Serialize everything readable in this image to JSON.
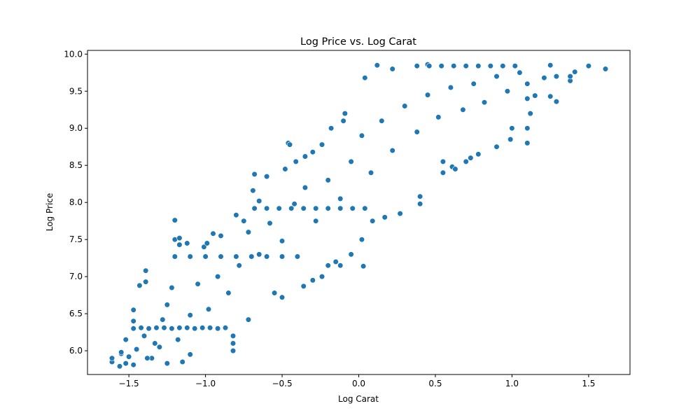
{
  "chart_data": {
    "type": "scatter",
    "title": "Log Price vs. Log Carat",
    "xlabel": "Log Carat",
    "ylabel": "Log Price",
    "xlim": [
      -1.77,
      1.77
    ],
    "ylim": [
      5.68,
      10.05
    ],
    "xticks": [
      -1.5,
      -1.0,
      -0.5,
      0.0,
      0.5,
      1.0,
      1.5
    ],
    "xtick_labels": [
      "−1.5",
      "−1.0",
      "−0.5",
      "0.0",
      "0.5",
      "1.0",
      "1.5"
    ],
    "yticks": [
      6.0,
      6.5,
      7.0,
      7.5,
      8.0,
      8.5,
      9.0,
      9.5,
      10.0
    ],
    "ytick_labels": [
      "6.0",
      "6.5",
      "7.0",
      "7.5",
      "8.0",
      "8.5",
      "9.0",
      "9.5",
      "10.0"
    ],
    "grid": false,
    "legend": "none",
    "colors": {
      "marker_fill": "#1f77b4",
      "marker_edge": "#ffffff"
    },
    "series": [
      {
        "points": [
          [
            -1.61,
            5.85
          ],
          [
            -1.61,
            5.9
          ],
          [
            -1.56,
            5.79
          ],
          [
            -1.55,
            5.96
          ],
          [
            -1.52,
            5.83
          ],
          [
            -1.52,
            6.15
          ],
          [
            -1.47,
            5.81
          ],
          [
            -1.47,
            6.4
          ],
          [
            -1.47,
            6.55
          ],
          [
            -1.43,
            6.88
          ],
          [
            -1.39,
            7.08
          ],
          [
            -1.39,
            6.93
          ],
          [
            -1.35,
            5.9
          ],
          [
            -1.3,
            6.05
          ],
          [
            -1.25,
            5.83
          ],
          [
            -1.22,
            6.85
          ],
          [
            -1.2,
            7.5
          ],
          [
            -1.2,
            7.76
          ],
          [
            -1.17,
            7.52
          ],
          [
            -1.17,
            7.43
          ],
          [
            -1.15,
            5.85
          ],
          [
            -1.12,
            7.45
          ],
          [
            -1.1,
            5.95
          ],
          [
            -1.01,
            7.4
          ],
          [
            -0.99,
            7.45
          ],
          [
            -0.95,
            7.58
          ],
          [
            -0.9,
            7.55
          ],
          [
            -0.82,
            6.1
          ],
          [
            -0.82,
            6.2
          ],
          [
            -0.82,
            6.0
          ],
          [
            -0.8,
            7.83
          ],
          [
            -0.75,
            7.75
          ],
          [
            -0.72,
            6.42
          ],
          [
            -0.69,
            8.16
          ],
          [
            -0.68,
            8.38
          ],
          [
            -0.65,
            8.02
          ],
          [
            -0.6,
            8.35
          ],
          [
            -0.55,
            6.78
          ],
          [
            -0.5,
            6.72
          ],
          [
            -0.48,
            8.45
          ],
          [
            -0.46,
            8.8
          ],
          [
            -0.45,
            8.78
          ],
          [
            -0.41,
            8.55
          ],
          [
            -0.36,
            6.87
          ],
          [
            -0.35,
            8.62
          ],
          [
            -0.3,
            8.68
          ],
          [
            -0.3,
            6.95
          ],
          [
            -0.24,
            7.0
          ],
          [
            -0.24,
            8.78
          ],
          [
            -0.2,
            7.15
          ],
          [
            -0.18,
            9.0
          ],
          [
            -0.15,
            7.2
          ],
          [
            -0.12,
            7.15
          ],
          [
            -0.1,
            9.1
          ],
          [
            -0.09,
            9.2
          ],
          [
            -0.05,
            7.3
          ],
          [
            0.02,
            7.5
          ],
          [
            0.03,
            7.14
          ],
          [
            0.04,
            9.68
          ],
          [
            0.09,
            7.75
          ],
          [
            0.12,
            9.85
          ],
          [
            0.17,
            7.8
          ],
          [
            0.22,
            9.8
          ],
          [
            0.27,
            7.85
          ],
          [
            0.4,
            7.98
          ],
          [
            0.4,
            8.08
          ],
          [
            0.45,
            9.86
          ],
          [
            0.55,
            8.4
          ],
          [
            0.55,
            8.55
          ],
          [
            0.61,
            8.48
          ],
          [
            0.63,
            8.45
          ],
          [
            0.7,
            8.55
          ],
          [
            0.73,
            8.6
          ],
          [
            0.78,
            8.65
          ],
          [
            0.9,
            8.75
          ],
          [
            0.99,
            8.85
          ],
          [
            1.0,
            9.0
          ],
          [
            1.1,
            8.8
          ],
          [
            1.1,
            9.0
          ],
          [
            1.1,
            9.4
          ],
          [
            1.1,
            9.6
          ],
          [
            1.12,
            9.2
          ],
          [
            1.15,
            9.44
          ],
          [
            1.21,
            9.68
          ],
          [
            1.25,
            9.85
          ],
          [
            1.25,
            9.43
          ],
          [
            1.29,
            9.36
          ],
          [
            1.29,
            9.7
          ],
          [
            1.38,
            9.64
          ],
          [
            1.38,
            9.7
          ],
          [
            1.41,
            9.76
          ],
          [
            1.5,
            9.84
          ],
          [
            1.61,
            9.8
          ],
          [
            -1.47,
            6.3
          ],
          [
            -1.42,
            6.31
          ],
          [
            -1.37,
            6.3
          ],
          [
            -1.32,
            6.31
          ],
          [
            -1.27,
            6.31
          ],
          [
            -1.22,
            6.3
          ],
          [
            -1.17,
            6.31
          ],
          [
            -1.12,
            6.31
          ],
          [
            -1.07,
            6.3
          ],
          [
            -1.02,
            6.31
          ],
          [
            -0.97,
            6.31
          ],
          [
            -0.92,
            6.3
          ],
          [
            -0.87,
            6.31
          ],
          [
            -1.2,
            7.27
          ],
          [
            -1.1,
            7.27
          ],
          [
            -1.0,
            7.27
          ],
          [
            -0.9,
            7.27
          ],
          [
            -0.8,
            7.27
          ],
          [
            -0.7,
            7.27
          ],
          [
            -0.6,
            7.27
          ],
          [
            -0.5,
            7.27
          ],
          [
            -0.4,
            7.27
          ],
          [
            -0.68,
            7.92
          ],
          [
            -0.6,
            7.92
          ],
          [
            -0.52,
            7.92
          ],
          [
            -0.44,
            7.92
          ],
          [
            -0.36,
            7.92
          ],
          [
            -0.28,
            7.92
          ],
          [
            -0.2,
            7.92
          ],
          [
            -0.12,
            7.92
          ],
          [
            -0.04,
            7.92
          ],
          [
            0.04,
            7.92
          ],
          [
            0.38,
            9.84
          ],
          [
            0.46,
            9.84
          ],
          [
            0.54,
            9.84
          ],
          [
            0.62,
            9.84
          ],
          [
            0.7,
            9.84
          ],
          [
            0.78,
            9.84
          ],
          [
            0.86,
            9.84
          ],
          [
            0.94,
            9.84
          ],
          [
            1.02,
            9.84
          ],
          [
            -1.55,
            5.98
          ],
          [
            -1.5,
            5.92
          ],
          [
            -1.45,
            6.02
          ],
          [
            -1.4,
            6.2
          ],
          [
            -1.38,
            5.9
          ],
          [
            -1.33,
            6.1
          ],
          [
            -1.28,
            6.42
          ],
          [
            -1.25,
            6.62
          ],
          [
            -1.18,
            6.15
          ],
          [
            -1.1,
            6.48
          ],
          [
            -1.05,
            6.9
          ],
          [
            -0.98,
            6.56
          ],
          [
            -0.92,
            7.0
          ],
          [
            -0.85,
            6.78
          ],
          [
            -0.78,
            7.15
          ],
          [
            -0.72,
            7.6
          ],
          [
            -0.65,
            7.3
          ],
          [
            -0.58,
            7.72
          ],
          [
            -0.5,
            7.48
          ],
          [
            -0.42,
            7.98
          ],
          [
            -0.35,
            8.2
          ],
          [
            -0.28,
            7.75
          ],
          [
            -0.2,
            8.3
          ],
          [
            -0.12,
            8.05
          ],
          [
            -0.05,
            8.55
          ],
          [
            0.02,
            8.9
          ],
          [
            0.08,
            8.4
          ],
          [
            0.15,
            9.1
          ],
          [
            0.22,
            8.7
          ],
          [
            0.3,
            9.3
          ],
          [
            0.38,
            8.95
          ],
          [
            0.45,
            9.45
          ],
          [
            0.52,
            9.15
          ],
          [
            0.6,
            9.55
          ],
          [
            0.68,
            9.25
          ],
          [
            0.75,
            9.6
          ],
          [
            0.82,
            9.35
          ],
          [
            0.9,
            9.7
          ],
          [
            0.97,
            9.5
          ],
          [
            1.05,
            9.75
          ]
        ]
      }
    ]
  }
}
